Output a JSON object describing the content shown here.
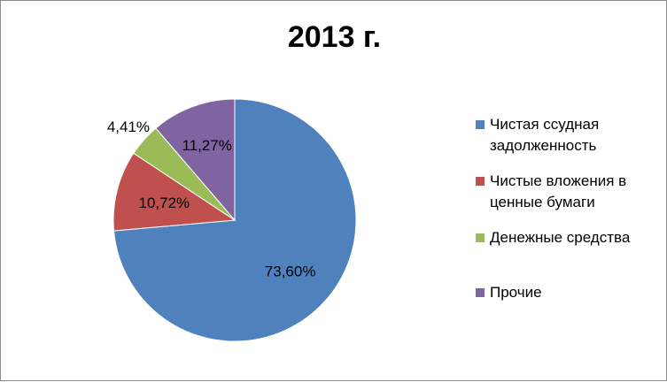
{
  "chart_data": {
    "type": "pie",
    "title": "2013 г.",
    "slices": [
      {
        "label": "Чистая ссудная задолженность",
        "value": 73.6,
        "display": "73,60%",
        "color": "#4f81bd"
      },
      {
        "label": "Чистые вложения в ценные бумаги",
        "value": 10.72,
        "display": "10,72%",
        "color": "#c0504d"
      },
      {
        "label": "Денежные средства",
        "value": 4.41,
        "display": "4,41%",
        "color": "#9bbb59"
      },
      {
        "label": "Прочие",
        "value": 11.27,
        "display": "11,27%",
        "color": "#8064a2"
      }
    ],
    "legend_position": "right"
  }
}
